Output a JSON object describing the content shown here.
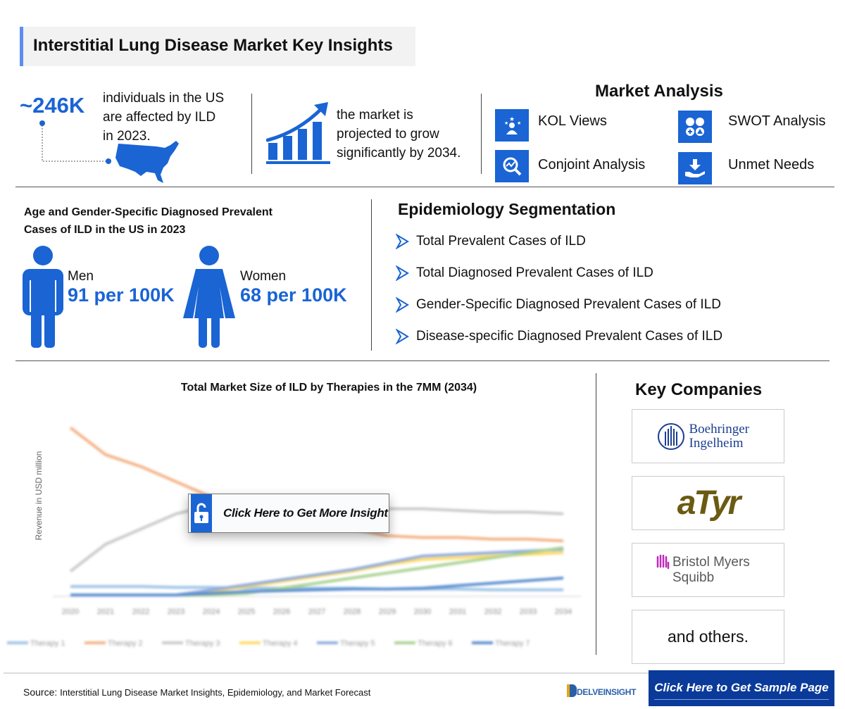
{
  "header": {
    "title": "Interstitial Lung Disease Market Key Insights"
  },
  "stats": {
    "affected_value": "~246K",
    "affected_text": [
      "individuals in the US",
      "are affected by ILD",
      "in 2023."
    ],
    "growth_text": [
      "the market is",
      "projected to grow",
      "significantly by 2034."
    ]
  },
  "market_analysis": {
    "title": "Market Analysis",
    "items": [
      {
        "label": "KOL Views",
        "icon": "kol-person-stars-icon"
      },
      {
        "label": "SWOT Analysis",
        "icon": "swot-grid-icon"
      },
      {
        "label": "Conjoint Analysis",
        "icon": "magnifier-chart-icon"
      },
      {
        "label": "Unmet Needs",
        "icon": "hand-receive-icon"
      }
    ]
  },
  "prevalence": {
    "title": [
      "Age and Gender-Specific Diagnosed Prevalent",
      "Cases of ILD in the US in 2023"
    ],
    "men_label": "Men",
    "men_value": "91 per 100K",
    "women_label": "Women",
    "women_value": "68 per 100K"
  },
  "epidemiology": {
    "title": "Epidemiology Segmentation",
    "items": [
      "Total Prevalent Cases of ILD",
      "Total Diagnosed Prevalent Cases of ILD",
      "Gender-Specific Diagnosed Prevalent Cases of ILD",
      "Disease-specific Diagnosed Prevalent Cases of ILD"
    ]
  },
  "chart_data": {
    "type": "line",
    "title": "Total Market Size of ILD by Therapies in the 7MM (2034)",
    "ylabel": "Revenue in USD million",
    "x": [
      "2020",
      "2021",
      "2022",
      "2023",
      "2024",
      "2025",
      "2026",
      "2027",
      "2028",
      "2029",
      "2030",
      "2031",
      "2032",
      "2033",
      "2034"
    ],
    "ylim": [
      0,
      100
    ],
    "grid": false,
    "legend": "bottom",
    "series": [
      {
        "name": "Therapy 1",
        "color": "#9dc3e6",
        "values": [
          5,
          5,
          5,
          4.5,
          4.5,
          4,
          4,
          4,
          4,
          3.5,
          3.5,
          3.5,
          3,
          3,
          3
        ]
      },
      {
        "name": "Therapy 2",
        "color": "#f4b183",
        "values": [
          99,
          83,
          76,
          67,
          58,
          52,
          46,
          42,
          39,
          35,
          34,
          34,
          33,
          33,
          32
        ]
      },
      {
        "name": "Therapy 3",
        "color": "#c9c9c9",
        "values": [
          14,
          30,
          39,
          48,
          53,
          52,
          52,
          52,
          52,
          51,
          51,
          50,
          49,
          49,
          48
        ]
      },
      {
        "name": "Therapy 4",
        "color": "#ffd966",
        "values": [
          0,
          0,
          0,
          0,
          2,
          5,
          8,
          11,
          14,
          18,
          21,
          22,
          23,
          24,
          25
        ]
      },
      {
        "name": "Therapy 5",
        "color": "#8faadc",
        "values": [
          0,
          0,
          0,
          0,
          3,
          6,
          9,
          12,
          15,
          19,
          23,
          24,
          25,
          26,
          27
        ]
      },
      {
        "name": "Therapy 6",
        "color": "#a9d18e",
        "values": [
          0,
          0,
          0,
          0,
          0,
          1,
          4,
          7,
          10,
          13,
          16,
          19,
          22,
          25,
          28
        ]
      },
      {
        "name": "Therapy 7",
        "color": "#5b8ed0",
        "values": [
          0,
          0,
          0,
          0,
          1,
          2,
          2.5,
          3,
          3.5,
          3.5,
          4,
          5.5,
          7,
          8.5,
          10
        ]
      }
    ]
  },
  "insight_button": {
    "label": "Click Here to Get More Insight"
  },
  "key_companies": {
    "title": "Key Companies",
    "items": [
      "Boehringer Ingelheim",
      "aTyr",
      "Bristol Myers Squibb",
      "and others."
    ]
  },
  "footer": {
    "source_label": "Source:",
    "source_text": "Interstitial Lung Disease Market Insights, Epidemiology, and Market Forecast",
    "brand": "DELVEINSIGHT",
    "sample_button": "Click Here to Get Sample Page"
  },
  "colors": {
    "accent": "#1a64d4",
    "button_dark": "#0a3a9a"
  }
}
